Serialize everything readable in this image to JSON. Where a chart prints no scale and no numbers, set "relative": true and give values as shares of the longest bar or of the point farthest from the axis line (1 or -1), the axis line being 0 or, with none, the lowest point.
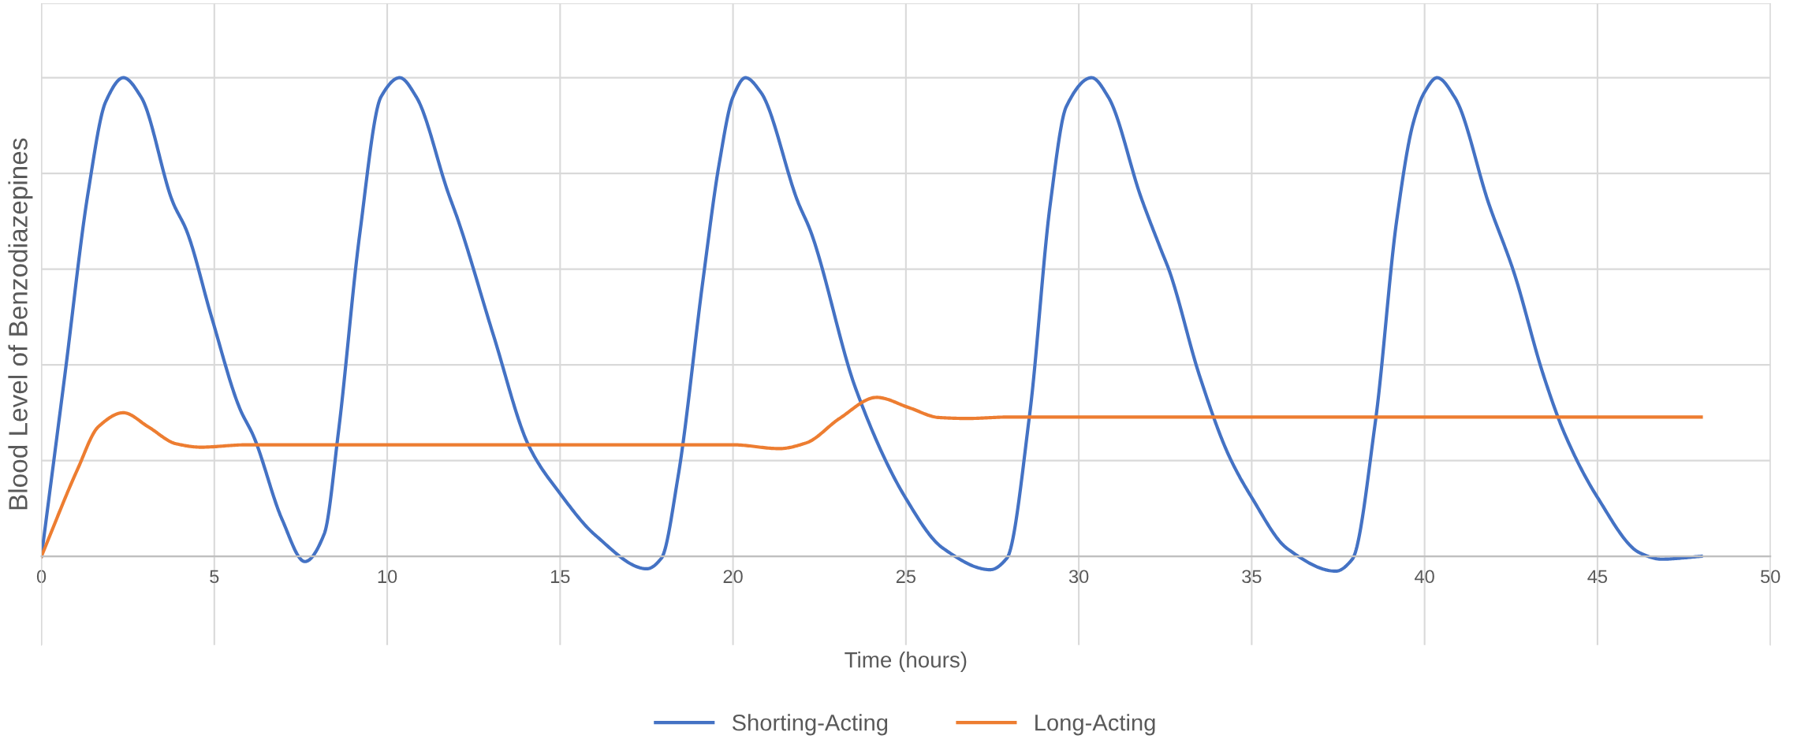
{
  "chart_data": {
    "type": "line",
    "xlabel": "Time (hours)",
    "ylabel": "Blood Level of Benzodiazepines",
    "relative": true,
    "xlim": [
      0,
      50
    ],
    "xticks": [
      0,
      5,
      10,
      15,
      20,
      25,
      30,
      35,
      40,
      45,
      50
    ],
    "tick_labels": "x",
    "grid": true,
    "legend": "bottom",
    "marker": "none",
    "line_style": "solid",
    "series": [
      {
        "name": "Shorting-Acting",
        "color": "#4472c4",
        "x": [
          0,
          0.68,
          1.35,
          1.86,
          2.37,
          2.88,
          3.8,
          4.2,
          4.92,
          5.73,
          6.14,
          6.96,
          7.62,
          8.18,
          8.59,
          9.2,
          9.82,
          10.36,
          10.84,
          11.76,
          12.06,
          13.08,
          14.1,
          15,
          16.02,
          17.51,
          17.93,
          18.41,
          19.13,
          19.6,
          20,
          20.36,
          20.8,
          21.88,
          22.24,
          23.55,
          24.99,
          26.07,
          27.44,
          27.92,
          28.58,
          29.17,
          29.64,
          30.37,
          30.85,
          31.8,
          32.38,
          32.63,
          33.48,
          34.33,
          35,
          36.03,
          37.43,
          37.91,
          38.58,
          39.19,
          39.67,
          40,
          40.36,
          40.88,
          41.86,
          42.58,
          43.43,
          44.05,
          45,
          46.23,
          46.84,
          48
        ],
        "values": [
          0,
          0.38,
          0.76,
          0.95,
          1.0,
          0.96,
          0.74,
          0.68,
          0.5,
          0.31,
          0.25,
          0.077,
          -0.011,
          0.047,
          0.26,
          0.67,
          0.96,
          1.0,
          0.96,
          0.76,
          0.7,
          0.46,
          0.23,
          0.131,
          0.044,
          -0.026,
          -0.004,
          0.166,
          0.576,
          0.82,
          0.96,
          1.0,
          0.97,
          0.74,
          0.68,
          0.35,
          0.122,
          0.017,
          -0.028,
          -0.004,
          0.297,
          0.733,
          0.94,
          1.0,
          0.96,
          0.75,
          0.64,
          0.594,
          0.38,
          0.212,
          0.123,
          0.016,
          -0.031,
          -0.006,
          0.283,
          0.7,
          0.905,
          0.97,
          1.0,
          0.958,
          0.736,
          0.594,
          0.38,
          0.256,
          0.123,
          0.007,
          -0.006,
          0
        ]
      },
      {
        "name": "Long-Acting",
        "color": "#ed7d31",
        "x": [
          0,
          1.04,
          1.65,
          2.37,
          3.08,
          3.9,
          4.61,
          5.94,
          20,
          21.34,
          22.12,
          23.08,
          24.15,
          25.11,
          25.95,
          26.78,
          27.98,
          48
        ],
        "values": [
          0,
          0.181,
          0.271,
          0.3,
          0.271,
          0.235,
          0.228,
          0.233,
          0.233,
          0.225,
          0.237,
          0.288,
          0.332,
          0.31,
          0.29,
          0.288,
          0.291,
          0.291
        ]
      }
    ]
  }
}
